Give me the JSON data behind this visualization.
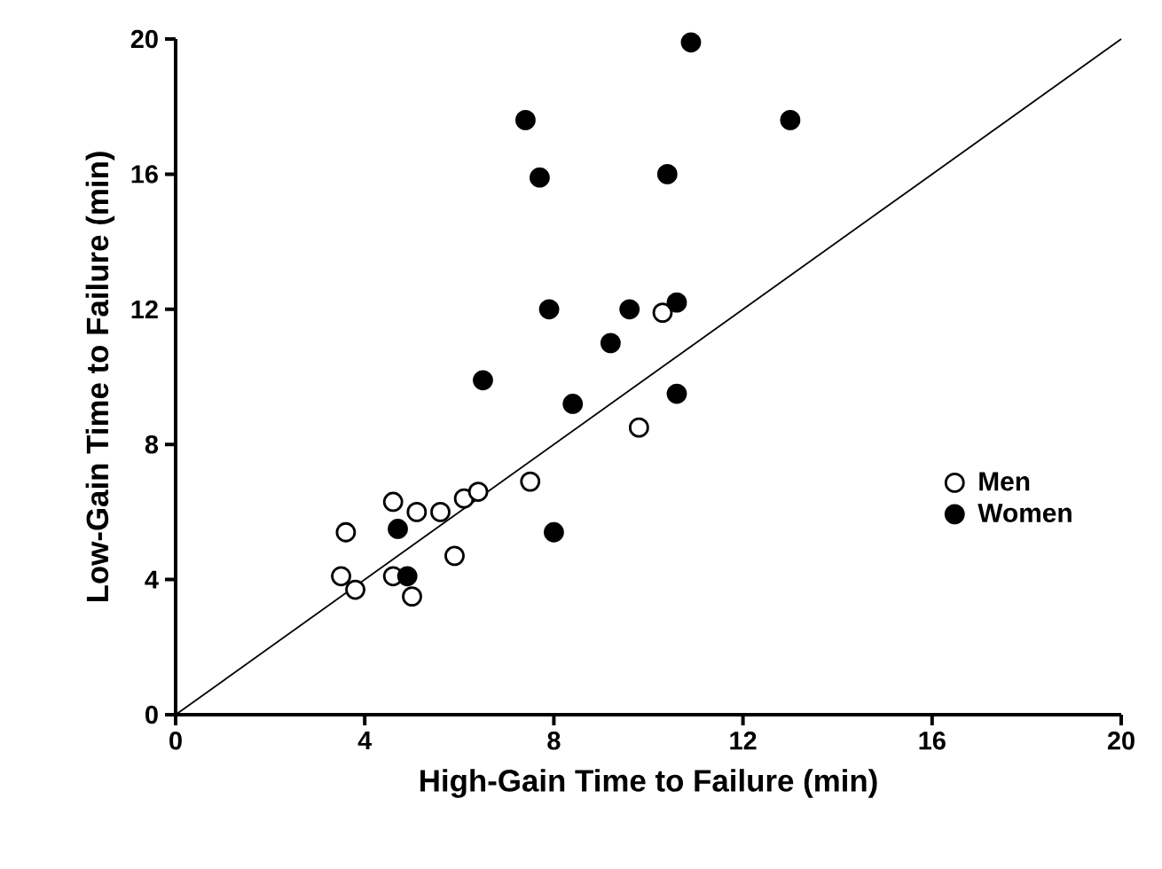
{
  "chart_data": {
    "type": "scatter",
    "xlabel": "High-Gain Time to Failure (min)",
    "ylabel": "Low-Gain Time to Failure (min)",
    "xlim": [
      0,
      20
    ],
    "ylim": [
      0,
      20
    ],
    "xticks": [
      0,
      4,
      8,
      12,
      16,
      20
    ],
    "yticks": [
      0,
      4,
      8,
      12,
      16,
      20
    ],
    "grid": false,
    "legend": "right",
    "series": [
      {
        "name": "Men",
        "marker": "circle",
        "color": "#ffffff",
        "x": [
          3.5,
          3.6,
          3.8,
          4.6,
          4.6,
          5.0,
          5.1,
          5.6,
          5.9,
          6.1,
          6.4,
          7.5,
          9.8,
          10.3
        ],
        "values": [
          4.1,
          5.4,
          3.7,
          6.3,
          4.1,
          3.5,
          6.0,
          6.0,
          4.7,
          6.4,
          6.6,
          6.9,
          8.5,
          11.9
        ]
      },
      {
        "name": "Women",
        "marker": "circle",
        "color": "#000000",
        "x": [
          4.7,
          4.9,
          6.5,
          7.4,
          7.7,
          7.9,
          8.0,
          8.4,
          9.2,
          9.6,
          10.4,
          10.6,
          10.6,
          10.9,
          13.0
        ],
        "values": [
          5.5,
          4.1,
          9.9,
          17.6,
          15.9,
          12.0,
          5.4,
          9.2,
          11.0,
          12.0,
          16.0,
          12.2,
          9.5,
          19.9,
          17.6
        ]
      },
      {
        "type": "line",
        "marker": "none",
        "color": "#000000",
        "x": [
          0,
          20
        ],
        "values": [
          0,
          20
        ]
      }
    ]
  }
}
